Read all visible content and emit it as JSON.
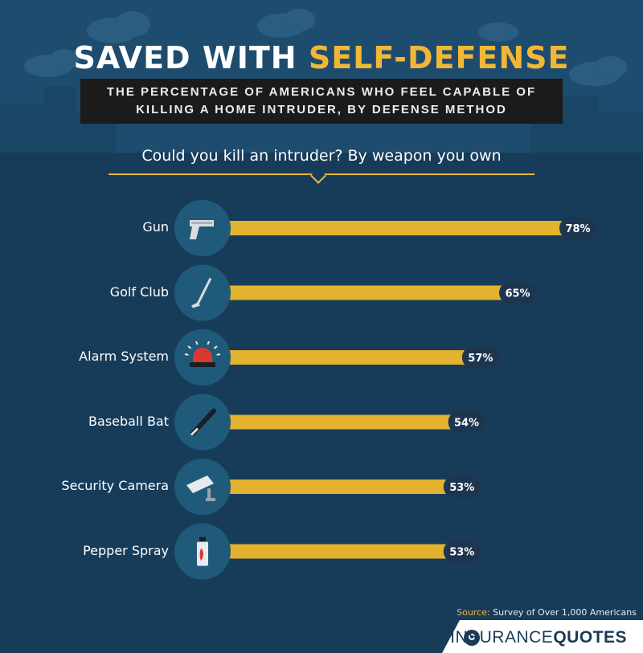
{
  "title_main": "SAVED WITH",
  "title_accent": "SELF-DEFENSE",
  "subtitle_line1": "THE PERCENTAGE OF AMERICANS WHO FEEL CAPABLE OF",
  "subtitle_line2": "KILLING A HOME INTRUDER, BY DEFENSE METHOD",
  "question": "Could you kill an intruder? By weapon you own",
  "source_label": "Source:",
  "source_text": "Survey of Over 1,000 Americans",
  "brand_a": "INSURANCE",
  "brand_b": "QUOTES",
  "colors": {
    "background": "#173c5a",
    "bar": "#e3b22f",
    "accent": "#f2b736",
    "icon_circle": "#1f5a7a",
    "label_pill": "#1e3550"
  },
  "chart_data": {
    "type": "bar",
    "orientation": "horizontal",
    "title": "Could you kill an intruder? By weapon you own",
    "categories": [
      "Gun",
      "Golf Club",
      "Alarm System",
      "Baseball Bat",
      "Security Camera",
      "Pepper Spray"
    ],
    "values": [
      78,
      65,
      57,
      54,
      53,
      53
    ],
    "value_labels": [
      "78%",
      "65%",
      "57%",
      "54%",
      "53%",
      "53%"
    ],
    "icons": [
      "gun-icon",
      "golf-club-icon",
      "alarm-siren-icon",
      "baseball-bat-icon",
      "security-camera-icon",
      "pepper-spray-icon"
    ],
    "unit": "%",
    "xlim": [
      0,
      100
    ],
    "grid": false
  }
}
